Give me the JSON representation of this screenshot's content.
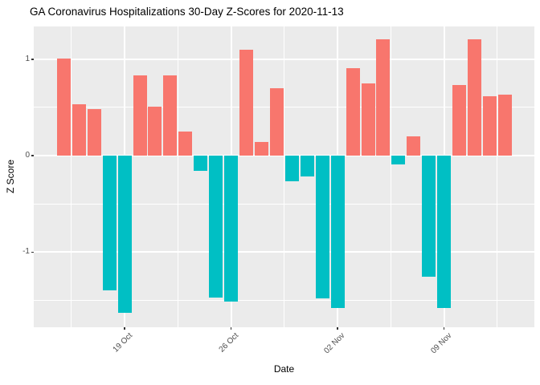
{
  "figure": {
    "title": "GA Coronavirus Hospitalizations 30-Day Z-Scores for 2020-11-13"
  },
  "chart_data": {
    "type": "bar",
    "title": "GA Coronavirus Hospitalizations 30-Day Z-Scores for 2020-11-13",
    "xlabel": "Date",
    "ylabel": "Z Score",
    "x": [
      "2020-10-15",
      "2020-10-16",
      "2020-10-17",
      "2020-10-18",
      "2020-10-19",
      "2020-10-20",
      "2020-10-21",
      "2020-10-22",
      "2020-10-23",
      "2020-10-24",
      "2020-10-25",
      "2020-10-26",
      "2020-10-27",
      "2020-10-28",
      "2020-10-29",
      "2020-10-30",
      "2020-10-31",
      "2020-11-01",
      "2020-11-02",
      "2020-11-03",
      "2020-11-04",
      "2020-11-05",
      "2020-11-06",
      "2020-11-07",
      "2020-11-08",
      "2020-11-09",
      "2020-11-10",
      "2020-11-11",
      "2020-11-12",
      "2020-11-13"
    ],
    "values": [
      1.01,
      0.53,
      0.48,
      -1.4,
      -1.63,
      0.83,
      0.51,
      0.83,
      0.25,
      -0.16,
      -1.47,
      -1.51,
      1.1,
      0.14,
      0.7,
      -0.27,
      -0.22,
      -1.48,
      -1.58,
      0.91,
      0.75,
      1.21,
      -0.09,
      0.2,
      -1.26,
      -1.58,
      0.73,
      1.21,
      0.62,
      0.63
    ],
    "positive_color": "#F8766D",
    "negative_color": "#00BFC4",
    "x_tick_labels": [
      "19 Oct",
      "26 Oct",
      "02 Nov",
      "09 Nov"
    ],
    "x_tick_day_index": [
      4,
      11,
      18,
      25
    ],
    "x_minor_day_index": [
      0.5,
      7.5,
      14.5,
      21.5,
      28.5
    ],
    "y_ticks": [
      1,
      0,
      -1
    ],
    "y_tick_labels": [
      "1",
      "0",
      "-1"
    ],
    "y_minor": [
      0.5,
      -0.5,
      -1.5
    ],
    "ylim": [
      -1.78,
      1.34
    ],
    "grid": true,
    "legend": "none",
    "panel_bg": "#EBEBEB",
    "grid_color": "#FFFFFF",
    "tick_label_color": "#4D4D4D"
  }
}
